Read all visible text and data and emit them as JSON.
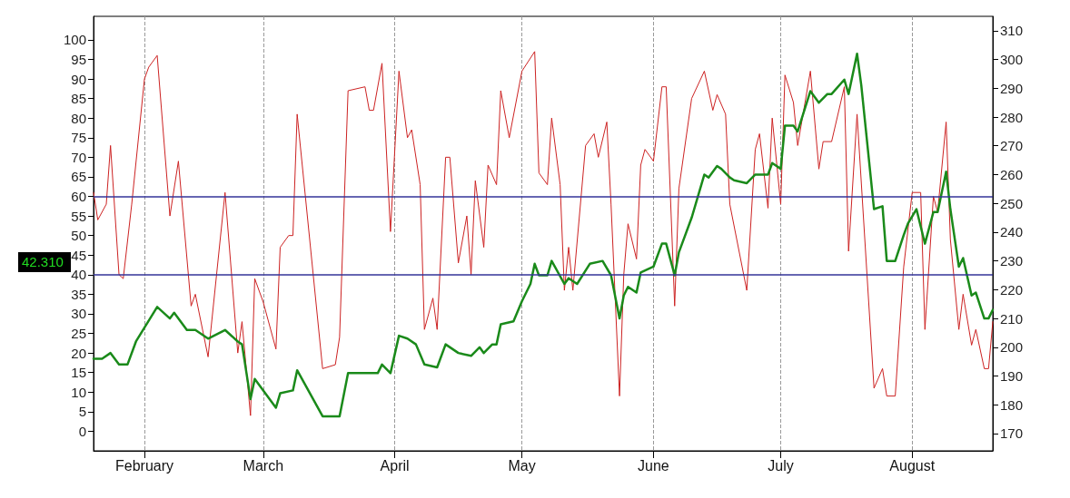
{
  "chart_data": {
    "type": "line",
    "xlim": [
      "--01-20",
      "--08-20"
    ],
    "xticks": [
      {
        "value": "--02-01",
        "label": "February"
      },
      {
        "value": "--03-01",
        "label": "March"
      },
      {
        "value": "--04-01",
        "label": "April"
      },
      {
        "value": "--05-01",
        "label": "May"
      },
      {
        "value": "--06-01",
        "label": "June"
      },
      {
        "value": "--07-01",
        "label": "July"
      },
      {
        "value": "--08-01",
        "label": "August"
      }
    ],
    "ylim": [
      -5,
      106
    ],
    "yticks": [
      0,
      5,
      10,
      15,
      20,
      25,
      30,
      35,
      40,
      45,
      50,
      55,
      60,
      65,
      70,
      75,
      80,
      85,
      90,
      95,
      100
    ],
    "y2lim": [
      164,
      315
    ],
    "y2ticks": [
      170,
      180,
      190,
      200,
      210,
      220,
      230,
      240,
      250,
      260,
      270,
      280,
      290,
      300,
      310
    ],
    "grid": "x",
    "marker": "none",
    "line_style": "solid",
    "series": [
      {
        "color": "#cc2222",
        "x": [
          "--01-20",
          "--01-21",
          "--01-23",
          "--01-24",
          "--01-26",
          "--01-27",
          "--01-29",
          "--02-01",
          "--02-02",
          "--02-04",
          "--02-07",
          "--02-09",
          "--02-12",
          "--02-13",
          "--02-16",
          "--02-20",
          "--02-23",
          "--02-24",
          "--02-26",
          "--02-27",
          "--03-01",
          "--03-04",
          "--03-05",
          "--03-07",
          "--03-08",
          "--03-09",
          "--03-15",
          "--03-18",
          "--03-19",
          "--03-21",
          "--03-25",
          "--03-26",
          "--03-27",
          "--03-29",
          "--03-31",
          "--04-02",
          "--04-04",
          "--04-05",
          "--04-07",
          "--04-08",
          "--04-10",
          "--04-11",
          "--04-13",
          "--04-14",
          "--04-16",
          "--04-18",
          "--04-19",
          "--04-20",
          "--04-22",
          "--04-23",
          "--04-25",
          "--04-26",
          "--04-28",
          "--05-01",
          "--05-04",
          "--05-05",
          "--05-07",
          "--05-08",
          "--05-10",
          "--05-11",
          "--05-12",
          "--05-13",
          "--05-16",
          "--05-18",
          "--05-19",
          "--05-21",
          "--05-22",
          "--05-24",
          "--05-25",
          "--05-26",
          "--05-28",
          "--05-29",
          "--05-30",
          "--06-01",
          "--06-03",
          "--06-04",
          "--06-06",
          "--06-07",
          "--06-10",
          "--06-13",
          "--06-15",
          "--06-16",
          "--06-18",
          "--06-19",
          "--06-23",
          "--06-25",
          "--06-26",
          "--06-28",
          "--06-29",
          "--07-01",
          "--07-02",
          "--07-04",
          "--07-05",
          "--07-08",
          "--07-10",
          "--07-11",
          "--07-13",
          "--07-16",
          "--07-17",
          "--07-19",
          "--07-23",
          "--07-25",
          "--07-26",
          "--07-28",
          "--07-30",
          "--08-01",
          "--08-03",
          "--08-04",
          "--08-06",
          "--08-07",
          "--08-09",
          "--08-10",
          "--08-12",
          "--08-13",
          "--08-15",
          "--08-16",
          "--08-18",
          "--08-19",
          "--08-20"
        ],
        "values": [
          61,
          54,
          58,
          73,
          40,
          39,
          58,
          90,
          93,
          96,
          55,
          69,
          32,
          35,
          19,
          61,
          20,
          28,
          4,
          39,
          33,
          21,
          47,
          50,
          50,
          81,
          16,
          17,
          24,
          87,
          88,
          82,
          82,
          94,
          51,
          92,
          75,
          77,
          63,
          26,
          34,
          26,
          70,
          70,
          43,
          55,
          40,
          64,
          47,
          68,
          63,
          87,
          75,
          92,
          97,
          66,
          63,
          80,
          63,
          36,
          47,
          36,
          73,
          76,
          70,
          79,
          58,
          9,
          40,
          53,
          44,
          68,
          72,
          69,
          88,
          88,
          32,
          62,
          85,
          92,
          82,
          86,
          81,
          58,
          36,
          72,
          76,
          57,
          80,
          58,
          91,
          84,
          73,
          92,
          67,
          74,
          74,
          88,
          46,
          81,
          11,
          16,
          9,
          9,
          42,
          61,
          61,
          26,
          60,
          56,
          79,
          49,
          26,
          35,
          22,
          26,
          16,
          16,
          28
        ]
      },
      {
        "color": "#1a8a1a",
        "axis": "y2",
        "x": [
          "--01-20",
          "--01-22",
          "--01-24",
          "--01-26",
          "--01-28",
          "--01-30",
          "--02-04",
          "--02-07",
          "--02-08",
          "--02-11",
          "--02-13",
          "--02-16",
          "--02-20",
          "--02-23",
          "--02-24",
          "--02-26",
          "--02-27",
          "--03-04",
          "--03-05",
          "--03-08",
          "--03-09",
          "--03-15",
          "--03-19",
          "--03-21",
          "--03-28",
          "--03-29",
          "--03-31",
          "--04-02",
          "--04-04",
          "--04-06",
          "--04-08",
          "--04-11",
          "--04-13",
          "--04-16",
          "--04-19",
          "--04-21",
          "--04-22",
          "--04-24",
          "--04-25",
          "--04-26",
          "--04-29",
          "--05-01",
          "--05-03",
          "--05-04",
          "--05-05",
          "--05-07",
          "--05-08",
          "--05-11",
          "--05-12",
          "--05-14",
          "--05-17",
          "--05-20",
          "--05-22",
          "--05-24",
          "--05-25",
          "--05-26",
          "--05-28",
          "--05-29",
          "--06-01",
          "--06-03",
          "--06-04",
          "--06-06",
          "--06-07",
          "--06-10",
          "--06-13",
          "--06-14",
          "--06-16",
          "--06-17",
          "--06-19",
          "--06-20",
          "--06-23",
          "--06-25",
          "--06-28",
          "--06-29",
          "--07-01",
          "--07-02",
          "--07-04",
          "--07-05",
          "--07-08",
          "--07-10",
          "--07-12",
          "--07-13",
          "--07-16",
          "--07-17",
          "--07-19",
          "--07-20",
          "--07-23",
          "--07-25",
          "--07-26",
          "--07-28",
          "--07-30",
          "--07-31",
          "--08-02",
          "--08-04",
          "--08-06",
          "--08-07",
          "--08-09",
          "--08-10",
          "--08-12",
          "--08-13",
          "--08-15",
          "--08-16",
          "--08-18",
          "--08-19",
          "--08-20"
        ],
        "values": [
          196,
          196,
          198,
          194,
          194,
          202,
          214,
          210,
          212,
          206,
          206,
          203,
          206,
          202,
          201,
          182,
          189,
          179,
          184,
          185,
          192,
          176,
          176,
          191,
          191,
          194,
          191,
          204,
          203,
          201,
          194,
          193,
          201,
          198,
          197,
          200,
          198,
          201,
          201,
          208,
          209,
          216,
          222,
          229,
          225,
          225,
          230,
          222,
          224,
          222,
          229,
          230,
          225,
          210,
          218,
          221,
          219,
          226,
          228,
          236,
          236,
          225,
          233,
          245,
          260,
          259,
          263,
          262,
          259,
          258,
          257,
          260,
          260,
          264,
          262,
          277,
          277,
          275,
          289,
          285,
          288,
          288,
          293,
          288,
          302,
          291,
          248,
          249,
          230,
          230,
          239,
          243,
          248,
          236,
          247,
          247,
          261,
          248,
          228,
          231,
          218,
          219,
          210,
          210,
          213
        ]
      }
    ],
    "ref_lines": [
      {
        "axis": "y",
        "value": 60,
        "color": "#333399"
      },
      {
        "axis": "y",
        "value": 40,
        "color": "#333399"
      }
    ],
    "annotations": [
      "42.310"
    ]
  }
}
